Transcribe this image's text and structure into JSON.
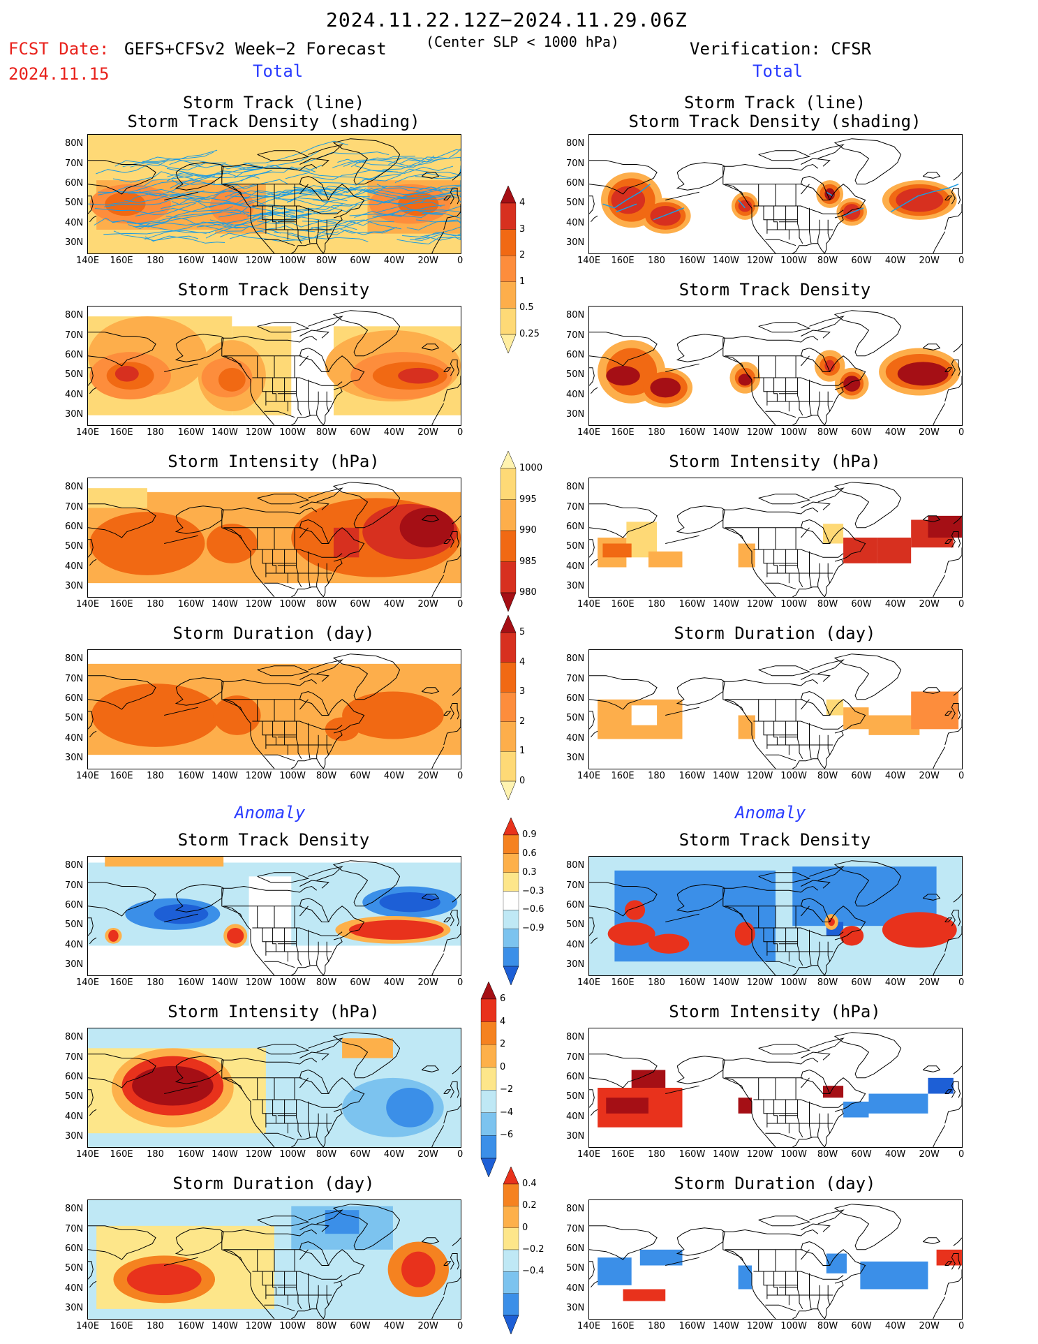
{
  "header": {
    "date_range": "2024.11.22.12Z−2024.11.29.06Z",
    "fcst_date_label": "FCST Date:",
    "fcst_date_value": "2024.11.15",
    "forecast_name": "GEFS+CFSv2 Week−2 Forecast",
    "criterion": "(Center SLP < 1000 hPa)",
    "verification": "Verification: CFSR"
  },
  "sections": {
    "total_label": "Total",
    "anomaly_label": "Anomaly"
  },
  "axes": {
    "lat_labels": [
      "80N",
      "70N",
      "60N",
      "50N",
      "40N",
      "30N"
    ],
    "lon_labels": [
      "140E",
      "160E",
      "180",
      "160W",
      "140W",
      "120W",
      "100W",
      "80W",
      "60W",
      "40W",
      "20W",
      "0"
    ]
  },
  "panels": [
    {
      "title": "Storm Track (line)\nStorm Track Density (shading)",
      "kind": "track",
      "side": "fcst"
    },
    {
      "title": "Storm Track (line)\nStorm Track Density (shading)",
      "kind": "track",
      "side": "obs"
    },
    {
      "title": "Storm Track Density",
      "kind": "density",
      "side": "fcst"
    },
    {
      "title": "Storm Track Density",
      "kind": "density",
      "side": "obs"
    },
    {
      "title": "Storm Intensity (hPa)",
      "kind": "intensity",
      "side": "fcst"
    },
    {
      "title": "Storm Intensity (hPa)",
      "kind": "intensity",
      "side": "obs"
    },
    {
      "title": "Storm Duration (day)",
      "kind": "duration",
      "side": "fcst"
    },
    {
      "title": "Storm Duration (day)",
      "kind": "duration",
      "side": "obs"
    },
    {
      "title": "Storm Track Density",
      "kind": "a_density",
      "side": "fcst"
    },
    {
      "title": "Storm Track Density",
      "kind": "a_density",
      "side": "obs"
    },
    {
      "title": "Storm Intensity (hPa)",
      "kind": "a_intensity",
      "side": "fcst"
    },
    {
      "title": "Storm Intensity (hPa)",
      "kind": "a_intensity",
      "side": "obs"
    },
    {
      "title": "Storm Duration (day)",
      "kind": "a_duration",
      "side": "fcst"
    },
    {
      "title": "Storm Duration (day)",
      "kind": "a_duration",
      "side": "obs"
    }
  ],
  "colorbars": {
    "density": {
      "labels": [
        "4",
        "3",
        "2",
        "1",
        "0.5",
        "0.25"
      ],
      "colors": [
        "#a50f15",
        "#d7301f",
        "#f16913",
        "#fd8d3c",
        "#fdae4b",
        "#fed976",
        "#ffeda0"
      ]
    },
    "intensity": {
      "labels": [
        "1000",
        "995",
        "990",
        "985",
        "980"
      ],
      "colors": [
        "#fff3b0",
        "#fed976",
        "#fdae4b",
        "#f16913",
        "#d7301f",
        "#a50f15"
      ]
    },
    "duration": {
      "labels": [
        "5",
        "4",
        "3",
        "2",
        "1",
        "0"
      ],
      "colors": [
        "#a50f15",
        "#d7301f",
        "#f16913",
        "#fd8d3c",
        "#fdae4b",
        "#fed976",
        "#fff3b0"
      ]
    },
    "a_density": {
      "labels": [
        "0.9",
        "0.6",
        "0.3",
        "−0.3",
        "−0.6",
        "−0.9"
      ],
      "colors": [
        "#e8321c",
        "#f58220",
        "#fdb04a",
        "#fde68a",
        "#ffffff",
        "#bfe8f5",
        "#7cc3ef",
        "#3b8fe8",
        "#1d5fd6"
      ]
    },
    "a_intensity": {
      "labels": [
        "6",
        "4",
        "2",
        "0",
        "−2",
        "−4",
        "−6"
      ],
      "colors": [
        "#a50f15",
        "#e8321c",
        "#f58220",
        "#fdb04a",
        "#fde68a",
        "#bfe8f5",
        "#7cc3ef",
        "#3b8fe8",
        "#1d5fd6"
      ]
    },
    "a_duration": {
      "labels": [
        "0.4",
        "0.2",
        "0",
        "−0.2",
        "−0.4"
      ],
      "colors": [
        "#e8321c",
        "#f58220",
        "#fdb04a",
        "#fde68a",
        "#bfe8f5",
        "#7cc3ef",
        "#3b8fe8",
        "#1d5fd6"
      ]
    }
  },
  "colors": {
    "title_red": "#e8221c",
    "section_blue": "#2a3cff",
    "track_line": "#1e9be0"
  }
}
